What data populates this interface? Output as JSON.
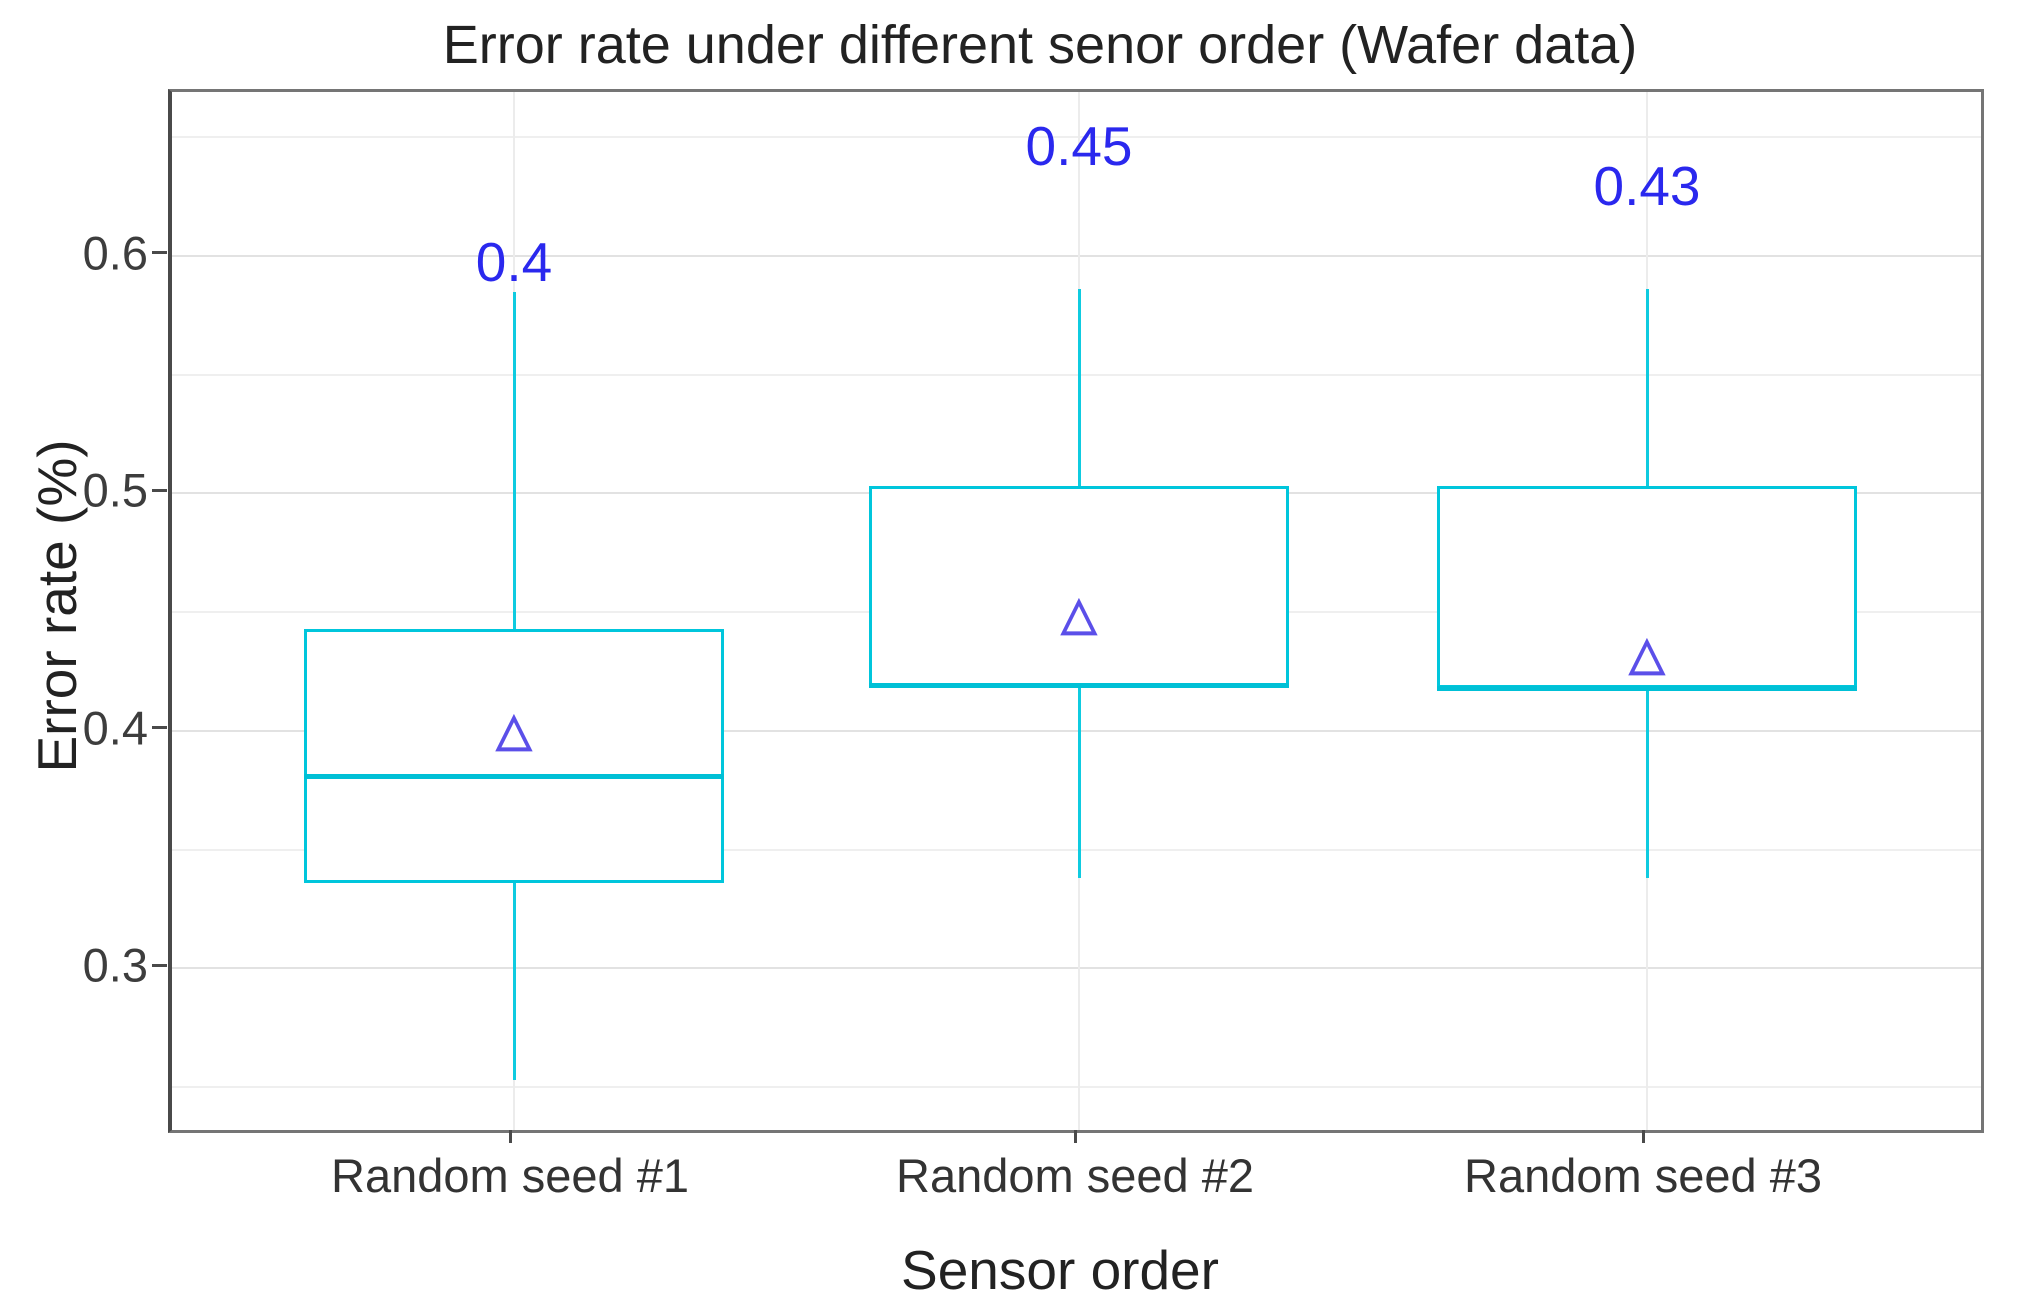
{
  "chart": {
    "title": "Error rate under different senor order (Wafer data)",
    "xlabel": "Sensor order",
    "ylabel": "Error rate (%)"
  },
  "chart_data": {
    "type": "boxplot",
    "title": "Error rate under different senor order (Wafer data)",
    "xlabel": "Sensor order",
    "ylabel": "Error rate (%)",
    "categories": [
      "Random seed #1",
      "Random seed #2",
      "Random seed #3"
    ],
    "ylim": [
      0.232,
      0.669
    ],
    "yticks_major": [
      0.3,
      0.4,
      0.5,
      0.6
    ],
    "ytick_labels": [
      "0.3",
      "0.4",
      "0.5",
      "0.6"
    ],
    "yticks_minor": [
      0.25,
      0.35,
      0.45,
      0.55,
      0.65
    ],
    "grid": "horizontal major and minor gridlines on, vertical gridline at each category, legend off",
    "legend": "none",
    "series": [
      {
        "name": "Random seed #1",
        "whisker_low": 0.253,
        "q1": 0.336,
        "median": 0.381,
        "q3": 0.443,
        "whisker_high": 0.585,
        "mean": 0.4,
        "mean_label": "0.4"
      },
      {
        "name": "Random seed #2",
        "whisker_low": 0.338,
        "q1": 0.419,
        "median": 0.419,
        "q3": 0.503,
        "whisker_high": 0.586,
        "mean": 0.449,
        "mean_label": "0.45"
      },
      {
        "name": "Random seed #3",
        "whisker_low": 0.338,
        "q1": 0.418,
        "median": 0.418,
        "q3": 0.503,
        "whisker_high": 0.586,
        "mean": 0.432,
        "mean_label": "0.43"
      }
    ],
    "colors": {
      "box_stroke": "#00c6dc",
      "whisker": "#0fcbe0",
      "median": "#00c0d6",
      "mean_marker": "#5b4fe9",
      "mean_label_text": "#2a28ee",
      "title_text": "#222222",
      "tick_text": "#3d3d3d",
      "grid_major": "#e2e2e2",
      "grid_minor": "#efefef",
      "panel_border": "#757575"
    }
  }
}
